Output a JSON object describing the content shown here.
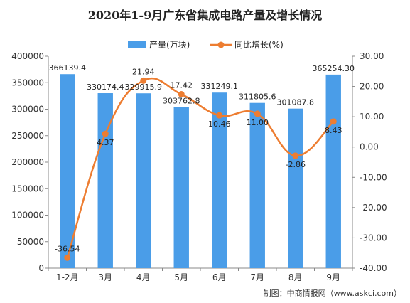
{
  "chart_data": {
    "type": "bar+line",
    "title": "2020年1-9月广东省集成电路产量及增长情况",
    "categories": [
      "1-2月",
      "3月",
      "4月",
      "5月",
      "6月",
      "7月",
      "8月",
      "9月"
    ],
    "series": [
      {
        "name": "产量(万块)",
        "type": "bar",
        "axis": "left",
        "color": "#4a9de8",
        "values": [
          366139.4,
          330174.4,
          329915.9,
          303762.8,
          331249.1,
          311805.6,
          301087.8,
          365254.3
        ],
        "labels": [
          "366139.4",
          "330174.4",
          "329915.9",
          "303762.8",
          "331249.1",
          "311805.6",
          "301087.8",
          "365254.30"
        ]
      },
      {
        "name": "同比增长(%)",
        "type": "line",
        "axis": "right",
        "color": "#ed7d31",
        "values": [
          -36.54,
          4.37,
          21.94,
          17.42,
          10.46,
          11.0,
          -2.86,
          8.43
        ],
        "labels": [
          "-36.54",
          "4.37",
          "21.94",
          "17.42",
          "10.46",
          "11.00",
          "-2.86",
          "8.43"
        ]
      }
    ],
    "y_left": {
      "min": 0,
      "max": 400000,
      "ticks": [
        "0",
        "50000",
        "100000",
        "150000",
        "200000",
        "250000",
        "300000",
        "350000",
        "400000"
      ]
    },
    "y_right": {
      "min": -40,
      "max": 30,
      "ticks": [
        "-40.00",
        "-30.00",
        "-20.00",
        "-10.00",
        "0.00",
        "10.00",
        "20.00",
        "30.00"
      ]
    },
    "grid": false,
    "legend_position": "top"
  },
  "source": "制图：中商情报网（www.askci.com）"
}
